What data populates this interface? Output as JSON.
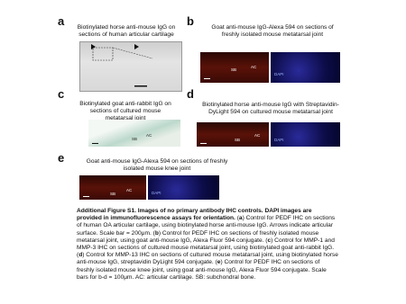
{
  "panels": [
    {
      "letter": "a",
      "title": "Biotinylated horse anti-mouse IgG on sections of human articular cartilage"
    },
    {
      "letter": "b",
      "title": "Goat anti-mouse IgG-Alexa 594 on sections of freshly isolated mouse metatarsal joint",
      "labels": [
        "SB",
        "AC",
        "DAPI"
      ]
    },
    {
      "letter": "c",
      "title": "Biotinylated goat anti-rabbit IgG on sections of cultured mouse metatarsal joint",
      "labels": [
        "SB",
        "AC"
      ]
    },
    {
      "letter": "d",
      "title": "Biotinylated horse anti-mouse IgG with Streptavidin-DyLight 594 on cultured mouse metatarsal joint",
      "labels": [
        "SB",
        "AC",
        "DAPI"
      ]
    },
    {
      "letter": "e",
      "title": "Goat anti-mouse IgG-Alexa 594 on sections of freshly isolated mouse knee joint",
      "labels": [
        "SB",
        "AC",
        "DAPI"
      ]
    }
  ],
  "caption": {
    "heading": "Additional Figure S1. Images of no primary antibody IHC controls. DAPI images are provided in immunofluorescence assays for orientation.",
    "parts": [
      " (",
      "a",
      ") Control for PEDF IHC on sections of human OA articular cartilage, using biotinylated horse anti-mouse IgG. Arrows indicate articular surface. Scale bar = 200μm. (",
      "b",
      ") Control for PEDF IHC on sections of freshly isolated mouse metatarsal joint, using goat anti-mouse IgG, Alexa Fluor 594 conjugate. (",
      "c",
      ") Control for MMP-1 and MMP-3 IHC on sections of cultured mouse metatarsal joint, using biotinylated goat anti-rabbit IgG. (",
      "d",
      ") Control for MMP-13 IHC on sections of cultured mouse metatarsal joint, using biotinylated horse anti-mouse IgG, streptavidin DyLight 594 conjugate. (",
      "e",
      ") Control for PEDF IHC on sections of freshly isolated mouse knee joint, using goat anti-mouse IgG, Alexa Fluor 594 conjugate. Scale bars for b-d = 100μm. AC: articular cartilage. SB: subchondral bone."
    ]
  }
}
